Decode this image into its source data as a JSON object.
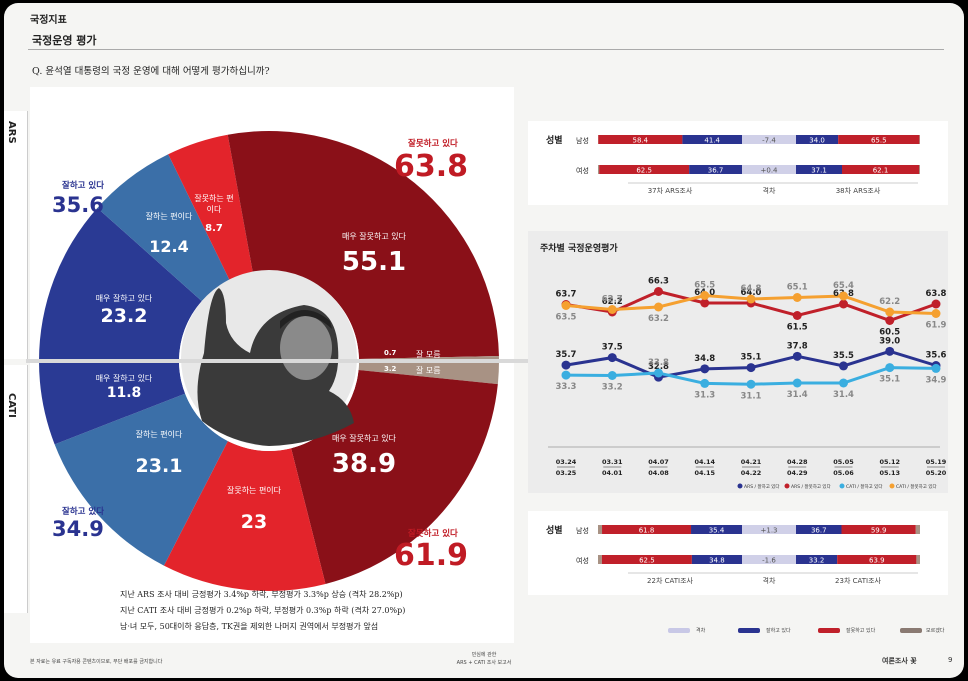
{
  "header": {
    "section": "국정지표",
    "title": "국정운영 평가",
    "question": "Q.   윤석열 대통령의 국정 운영에 대해 어떻게 평가하십니까?"
  },
  "side": {
    "ars": "ARS",
    "cati": "CATI"
  },
  "donut": {
    "ars": {
      "positive_label": "잘하고 있다",
      "positive_total": "35.6",
      "negative_label": "잘못하고 있다",
      "negative_total": "63.8",
      "very_good_label": "매우 잘하고 있다",
      "very_good": 23.2,
      "good_label": "잘하는 편이다",
      "good": 12.4,
      "bad_label": "잘못하는 편이다",
      "bad": 8.7,
      "very_bad_label": "매우 잘못하고 있다",
      "very_bad": 55.1,
      "dk_label": "잘 모름",
      "dk": 0.7
    },
    "cati": {
      "positive_label": "잘하고 있다",
      "positive_total": "34.9",
      "negative_label": "잘못하고 있다",
      "negative_total": "61.9",
      "very_good_label": "매우 잘하고 있다",
      "very_good": 11.8,
      "good_label": "잘하는 편이다",
      "good": 23.1,
      "bad_label": "잘못하는 편이다",
      "bad": 23.0,
      "very_bad_label": "매우 잘못하고 있다",
      "very_bad": 38.9,
      "dk_label": "잘 모름",
      "dk": 3.2
    }
  },
  "notes": [
    "지난 ARS 조사 대비 긍정평가 3.4%p 하락, 부정평가 3.3%p 상승 (격차 28.2%p)",
    "지난 CATI 조사 대비 긍정평가 0.2%p 하락, 부정평가 0.3%p 하락 (격차 27.0%p)",
    "남·녀 모두, 50대이하 응답층, TK권을 제외한 나머지 권역에서 부정평가 앞섬"
  ],
  "gender_ars": {
    "title": "성별",
    "rows": [
      {
        "label": "남성",
        "prev_neg": "58.4",
        "prev_pos": "41.4",
        "gap": "-7.4",
        "cur_pos": "34.0",
        "cur_neg": "65.5"
      },
      {
        "label": "여성",
        "prev_neg": "62.5",
        "prev_pos": "36.7",
        "gap": "+0.4",
        "cur_pos": "37.1",
        "cur_neg": "62.1"
      }
    ],
    "left_caption": "37차 ARS조사",
    "mid_caption": "격차",
    "right_caption": "38차 ARS조사"
  },
  "gender_cati": {
    "title": "성별",
    "rows": [
      {
        "label": "남성",
        "prev_neg": "61.8",
        "prev_pos": "35.4",
        "gap": "+1.3",
        "cur_pos": "36.7",
        "cur_neg": "59.9"
      },
      {
        "label": "여성",
        "prev_neg": "62.5",
        "prev_pos": "34.8",
        "gap": "-1.6",
        "cur_pos": "33.2",
        "cur_neg": "63.9"
      }
    ],
    "left_caption": "22차 CATI조사",
    "mid_caption": "격차",
    "right_caption": "23차 CATI조사"
  },
  "chart_data": {
    "type": "line",
    "title": "주차별 국정운영평가",
    "x_top": [
      "03.24",
      "03.31",
      "04.07",
      "04.14",
      "04.21",
      "04.28",
      "05.05",
      "05.12",
      "05.19"
    ],
    "x_bottom": [
      "03.25",
      "04.01",
      "04.08",
      "04.15",
      "04.22",
      "04.29",
      "05.06",
      "05.13",
      "05.20"
    ],
    "series": [
      {
        "name": "ARS / 잘못하고 있다",
        "color": "#c0202a",
        "values": [
          63.7,
          62.2,
          66.3,
          64.0,
          64.0,
          61.5,
          63.8,
          60.5,
          63.8
        ]
      },
      {
        "name": "CATI / 잘못하고 있다",
        "color": "#f5a030",
        "values": [
          63.5,
          62.7,
          63.2,
          65.5,
          64.8,
          65.1,
          65.4,
          62.2,
          61.9
        ]
      },
      {
        "name": "ARS / 잘하고 있다",
        "color": "#2a3390",
        "values": [
          35.7,
          37.5,
          32.8,
          34.8,
          35.1,
          37.8,
          35.5,
          39.0,
          35.6
        ]
      },
      {
        "name": "CATI / 잘하고 있다",
        "color": "#3aaee0",
        "values": [
          33.3,
          33.2,
          33.8,
          31.3,
          31.1,
          31.4,
          31.4,
          35.1,
          34.9
        ]
      }
    ]
  },
  "legend_bottom": [
    "격차",
    "잘하고 있다",
    "잘못하고 있다",
    "모르겠다"
  ],
  "footer": {
    "left": "본 자료는 유료 구독자용 콘텐츠이므로, 무단 배포를 금지합니다",
    "center1": "민심에 관한",
    "center2": "ARS + CATI 조사 보고서",
    "right": "여론조사 꽃",
    "page": "9"
  }
}
